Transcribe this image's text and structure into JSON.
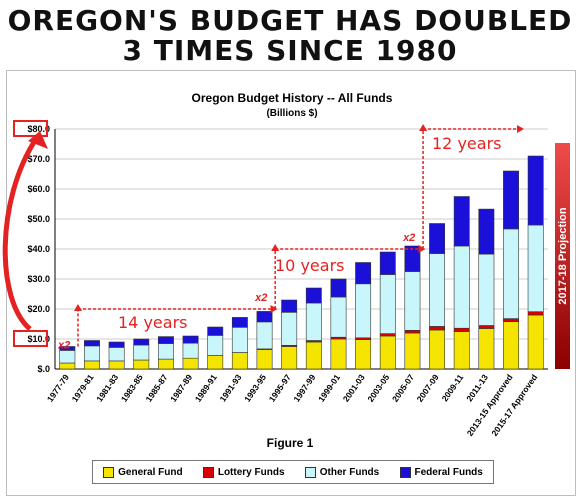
{
  "headline": {
    "line1": "OREGON'S BUDGET HAS DOUBLED",
    "line2": "3 TIMES SINCE 1980"
  },
  "figure_label": "Figure 1",
  "projection_label": "2017-18 Projection",
  "annotations": {
    "span1": "14 years",
    "span2": "10 years",
    "span3": "12 years",
    "doubling": "x2"
  },
  "colors": {
    "general": "#f4e400",
    "lottery": "#d80000",
    "other": "#c8f6fb",
    "federal": "#1a10d8",
    "annotation": "#e52222"
  },
  "legend": [
    {
      "label": "General Fund",
      "color": "#f4e400"
    },
    {
      "label": "Lottery Funds",
      "color": "#d80000"
    },
    {
      "label": "Other Funds",
      "color": "#c8f6fb"
    },
    {
      "label": "Federal Funds",
      "color": "#1a10d8"
    }
  ],
  "chart_data": {
    "type": "bar",
    "stacked": true,
    "title": "Oregon Budget History -- All Funds",
    "subtitle": "(Billions $)",
    "categories": [
      "1977-79",
      "1979-81",
      "1981-83",
      "1983-85",
      "1985-87",
      "1987-89",
      "1989-91",
      "1991-93",
      "1993-95",
      "1995-97",
      "1997-99",
      "1999-01",
      "2001-03",
      "2003-05",
      "2005-07",
      "2007-09",
      "2009-11",
      "2011-13",
      "2013-15 Approved",
      "2015-17 Approved"
    ],
    "series": [
      {
        "name": "General Fund",
        "values": [
          2.0,
          2.7,
          2.7,
          3.0,
          3.3,
          3.6,
          4.5,
          5.5,
          6.5,
          7.5,
          9.0,
          10.0,
          9.8,
          11.0,
          12.0,
          13.0,
          12.5,
          13.5,
          15.8,
          18.0
        ]
      },
      {
        "name": "Lottery Funds",
        "values": [
          0,
          0,
          0,
          0,
          0,
          0,
          0,
          0,
          0.2,
          0.4,
          0.5,
          0.6,
          0.6,
          0.8,
          0.9,
          1.2,
          1.1,
          1.0,
          1.0,
          1.1
        ]
      },
      {
        "name": "Other Funds",
        "values": [
          4.2,
          5.0,
          4.5,
          5.0,
          5.2,
          5.0,
          6.7,
          8.4,
          9.0,
          11.0,
          12.5,
          13.4,
          18.0,
          19.7,
          19.6,
          24.3,
          27.4,
          23.8,
          29.9,
          28.9
        ]
      },
      {
        "name": "Federal Funds",
        "values": [
          1.3,
          1.8,
          1.8,
          2.0,
          2.3,
          2.4,
          2.8,
          3.3,
          3.5,
          4.1,
          5.0,
          6.0,
          7.1,
          7.5,
          8.5,
          10.0,
          16.5,
          15.0,
          19.3,
          23.0
        ]
      }
    ],
    "yticks": [
      "$.0",
      "$10.0",
      "$20.0",
      "$30.0",
      "$40.0",
      "$50.0",
      "$60.0",
      "$70.0",
      "$80.0"
    ],
    "ylim": [
      0,
      80
    ],
    "legend_position": "bottom"
  }
}
